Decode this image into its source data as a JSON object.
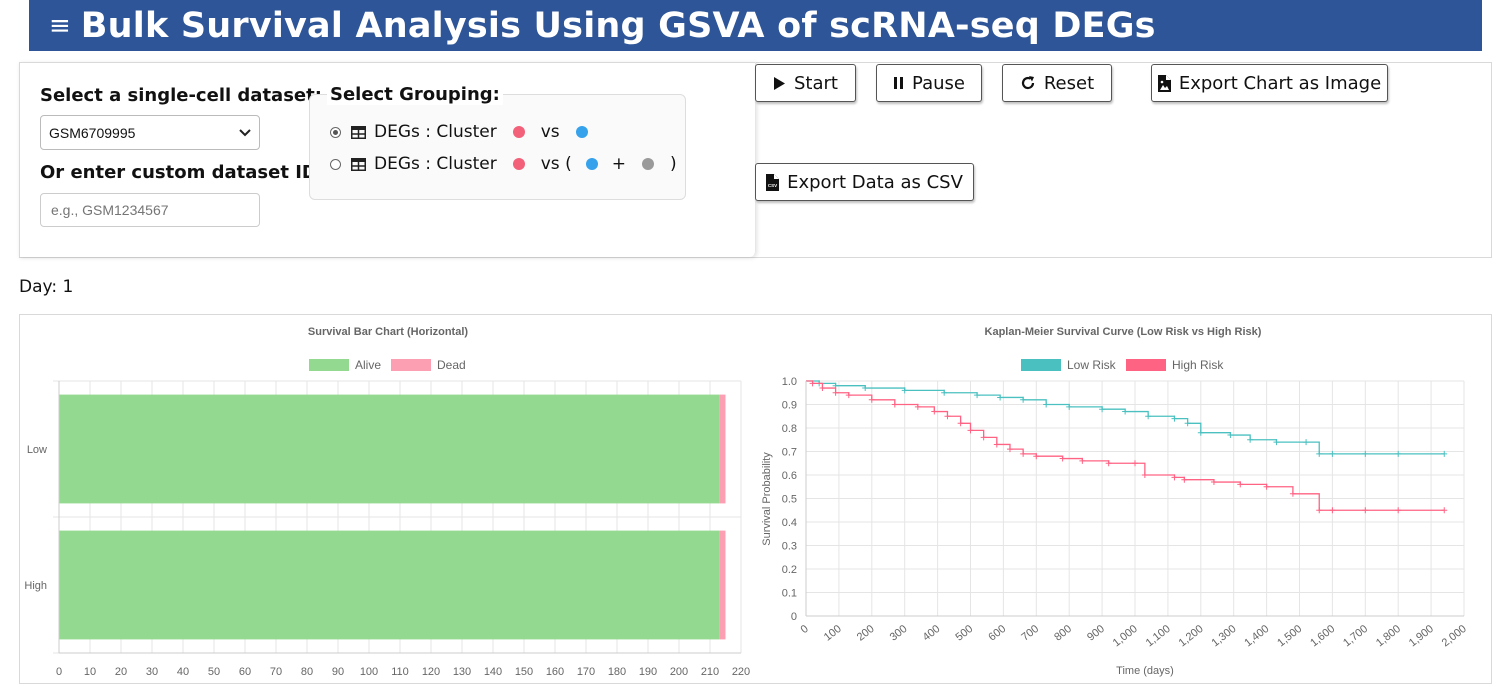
{
  "header": {
    "menu_icon": "hamburger-icon",
    "title": "Bulk Survival Analysis Using GSVA of scRNA-seq DEGs"
  },
  "controls": {
    "dataset_label": "Select a single-cell dataset:",
    "dataset_selected": "GSM6709995",
    "custom_label": "Or enter custom dataset ID:",
    "custom_placeholder": "e.g., GSM1234567",
    "grouping_label": "Select Grouping:",
    "grouping_options": [
      {
        "text": "DEGs : Cluster",
        "vs": "vs",
        "selected": true,
        "colors": [
          "#f2607a",
          "#36a2eb"
        ]
      },
      {
        "text": "DEGs : Cluster",
        "vs": "vs (",
        "plus": "+",
        "close": ")",
        "selected": false,
        "colors": [
          "#f2607a",
          "#36a2eb",
          "#9a9a9a"
        ]
      }
    ]
  },
  "buttons": {
    "start": "Start",
    "pause": "Pause",
    "reset": "Reset",
    "export_image": "Export Chart as Image",
    "export_csv": "Export Data as CSV",
    "csv_icon_text": "CSV"
  },
  "status": {
    "day_text": "Day: 1"
  },
  "colors": {
    "header": "#2d5597",
    "alive": "#93d990",
    "dead": "#fd9fb2",
    "low_risk": "#4bc0c0",
    "high_risk": "#ff6384"
  },
  "chart_data": [
    {
      "type": "bar",
      "orientation": "horizontal",
      "stacked": true,
      "title": "Survival Bar Chart (Horizontal)",
      "categories": [
        "Low",
        "High"
      ],
      "series": [
        {
          "name": "Alive",
          "values": [
            213,
            213
          ]
        },
        {
          "name": "Dead",
          "values": [
            2,
            2
          ]
        }
      ],
      "xlim": [
        0,
        220
      ],
      "xticks": [
        "0",
        "10",
        "20",
        "30",
        "40",
        "50",
        "60",
        "70",
        "80",
        "90",
        "100",
        "110",
        "120",
        "130",
        "140",
        "150",
        "160",
        "170",
        "180",
        "190",
        "200",
        "210",
        "220"
      ],
      "legend": "top",
      "grid": true
    },
    {
      "type": "line",
      "title": "Kaplan-Meier Survival Curve (Low Risk vs High Risk)",
      "xlabel": "Time (days)",
      "ylabel": "Survival Probability",
      "xlim": [
        0,
        2000
      ],
      "ylim": [
        0,
        1
      ],
      "xticks": [
        "0",
        "100",
        "200",
        "300",
        "400",
        "500",
        "600",
        "700",
        "800",
        "900",
        "1,000",
        "1,100",
        "1,200",
        "1,300",
        "1,400",
        "1,500",
        "1,600",
        "1,700",
        "1,800",
        "1,900",
        "2,000"
      ],
      "yticks": [
        "1.0",
        "0.9",
        "0.8",
        "0.7",
        "0.6",
        "0.5",
        "0.4",
        "0.3",
        "0.2",
        "0.1",
        "0"
      ],
      "legend": "top",
      "grid": true,
      "series": [
        {
          "name": "Low Risk",
          "x": [
            0,
            40,
            90,
            180,
            300,
            420,
            520,
            590,
            660,
            730,
            800,
            900,
            970,
            1040,
            1120,
            1160,
            1200,
            1290,
            1350,
            1430,
            1520,
            1560,
            1600,
            1700,
            1800,
            1940
          ],
          "y": [
            1.0,
            0.99,
            0.98,
            0.97,
            0.96,
            0.95,
            0.94,
            0.93,
            0.92,
            0.9,
            0.89,
            0.88,
            0.87,
            0.85,
            0.84,
            0.82,
            0.78,
            0.77,
            0.75,
            0.74,
            0.74,
            0.69,
            0.69,
            0.69,
            0.69,
            0.69
          ]
        },
        {
          "name": "High Risk",
          "x": [
            0,
            20,
            50,
            90,
            130,
            200,
            270,
            340,
            390,
            430,
            470,
            500,
            540,
            580,
            620,
            660,
            700,
            780,
            840,
            920,
            1000,
            1030,
            1120,
            1150,
            1240,
            1320,
            1400,
            1480,
            1560,
            1600,
            1700,
            1800,
            1940
          ],
          "y": [
            1.0,
            0.99,
            0.97,
            0.95,
            0.94,
            0.92,
            0.9,
            0.89,
            0.87,
            0.85,
            0.82,
            0.79,
            0.76,
            0.73,
            0.71,
            0.69,
            0.68,
            0.67,
            0.66,
            0.65,
            0.65,
            0.6,
            0.59,
            0.58,
            0.57,
            0.56,
            0.55,
            0.52,
            0.45,
            0.45,
            0.45,
            0.45,
            0.45
          ]
        }
      ]
    }
  ]
}
